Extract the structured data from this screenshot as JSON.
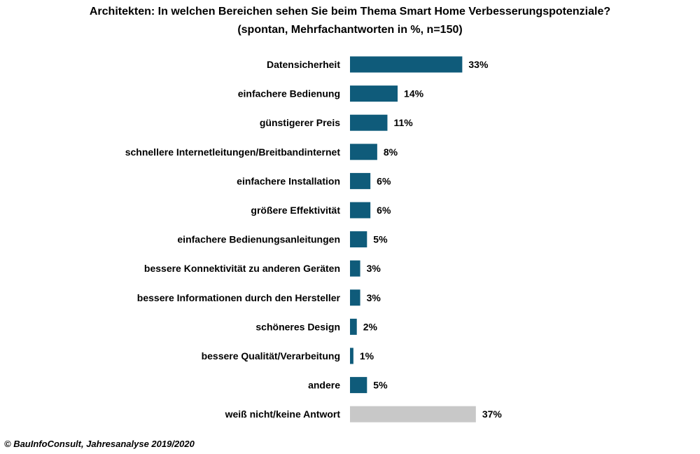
{
  "chart_data": {
    "type": "bar",
    "orientation": "horizontal",
    "title": "Architekten: In welchen Bereichen sehen Sie beim Thema Smart Home Verbesserungspotenziale?",
    "subtitle": "(spontan, Mehrfachantworten in %, n=150)",
    "categories": [
      "Datensicherheit",
      "einfachere Bedienung",
      "günstigerer Preis",
      "schnellere Internetleitungen/Breitbandinternet",
      "einfachere Installation",
      "größere Effektivität",
      "einfachere Bedienungsanleitungen",
      "bessere Konnektivität zu anderen Geräten",
      "bessere Informationen durch den Hersteller",
      "schöneres Design",
      "bessere Qualität/Verarbeitung",
      "andere",
      "weiß nicht/keine Antwort"
    ],
    "values": [
      33,
      14,
      11,
      8,
      6,
      6,
      5,
      3,
      3,
      2,
      1,
      5,
      37
    ],
    "data_labels": [
      "33%",
      "14%",
      "11%",
      "8%",
      "6%",
      "6%",
      "5%",
      "3%",
      "3%",
      "2%",
      "1%",
      "5%",
      "37%"
    ],
    "colors": [
      "#0f5b7a",
      "#0f5b7a",
      "#0f5b7a",
      "#0f5b7a",
      "#0f5b7a",
      "#0f5b7a",
      "#0f5b7a",
      "#0f5b7a",
      "#0f5b7a",
      "#0f5b7a",
      "#0f5b7a",
      "#0f5b7a",
      "#c8c8c8"
    ],
    "xlabel": "",
    "ylabel": "",
    "xlim": [
      0,
      40
    ],
    "grid": false
  },
  "footer": "© BauInfoConsult, Jahresanalyse 2019/2020"
}
